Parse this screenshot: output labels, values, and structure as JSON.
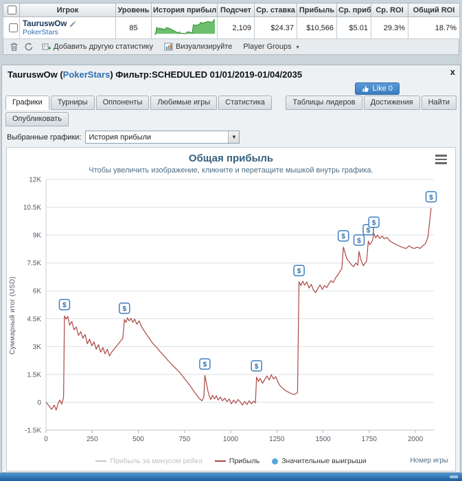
{
  "table": {
    "headers": [
      "Игрок",
      "Уровень",
      "История прибыли",
      "Подсчет",
      "Ср. ставка",
      "Прибыль",
      "Ср. приб",
      "Ср. ROI",
      "Общий ROI"
    ],
    "row": {
      "player": "TauruswOw",
      "site": "PokerStars",
      "level": "85",
      "count": "2,109",
      "avg_stake": "$24.37",
      "profit": "$10,566",
      "avg_profit": "$5.01",
      "avg_roi": "29.3%",
      "total_roi": "18.7%"
    },
    "sparkline": [
      0,
      -3,
      34,
      31,
      28,
      30,
      26,
      28,
      24,
      25,
      22,
      33,
      32,
      30,
      28,
      26,
      23,
      20,
      17,
      14,
      10,
      7,
      3,
      11,
      4,
      2,
      3,
      1,
      2,
      0,
      10,
      9,
      11,
      8,
      6,
      4,
      48,
      46,
      48,
      45,
      47,
      50,
      53,
      62,
      58,
      56,
      61,
      60,
      63,
      66,
      65,
      64,
      63,
      62,
      64,
      72,
      78
    ]
  },
  "toolbar": {
    "add_stat": "Добавить другую статистику",
    "visualize": "Визуализируйте",
    "player_groups": "Player Groups"
  },
  "panel": {
    "title_prefix": "TauruswOw (",
    "title_site": "PokerStars",
    "title_suffix": ") Фильтр:SCHEDULED 01/01/2019-01/04/2035",
    "like_label": "Like 0",
    "close_label": "x",
    "tabs_left": [
      "Графики",
      "Турниры",
      "Оппоненты",
      "Любимые игры",
      "Статистика"
    ],
    "tabs_right": [
      "Таблицы лидеров",
      "Достижения",
      "Найти"
    ],
    "tabs_row2": [
      "Опубликовать"
    ],
    "selector_label": "Выбранные графики:",
    "selector_value": "История прибыли"
  },
  "chart_data": {
    "type": "line",
    "title": "Общая прибыль",
    "subtitle": "Чтобы увеличить изображение, кликните и перетащите мышкой внутрь графика.",
    "xlabel": "Номер игры",
    "ylabel": "Суммарный итог (USD)",
    "xlim": [
      0,
      2100
    ],
    "ylim": [
      -1500,
      12000
    ],
    "xticks": [
      0,
      250,
      500,
      750,
      1000,
      1250,
      1500,
      1750,
      2000
    ],
    "yticks": [
      -1500,
      0,
      1500,
      3000,
      4500,
      6000,
      7500,
      9000,
      10500,
      12000
    ],
    "ytick_labels": [
      "-1.5K",
      "0",
      "1.5K",
      "3K",
      "4.5K",
      "6K",
      "7.5K",
      "9K",
      "10.5K",
      "12K"
    ],
    "grid": true,
    "line_color": "#AA4643",
    "marker_border": "#3f7fc1",
    "marker_text_color": "#2f6da4",
    "marker_label": "$",
    "legend_position": "bottom",
    "legend": [
      {
        "label": "Прибыль за минусом рейка",
        "type": "line",
        "color": "#c6c6c6",
        "disabled": true
      },
      {
        "label": "Прибыль",
        "type": "line",
        "color": "#AA4643",
        "disabled": false
      },
      {
        "label": "Значительные выигрыши",
        "type": "dot",
        "color": "#54a8e0",
        "disabled": false
      }
    ],
    "series": [
      {
        "name": "Прибыль",
        "points": [
          [
            0,
            0
          ],
          [
            15,
            -180
          ],
          [
            30,
            -380
          ],
          [
            45,
            -150
          ],
          [
            55,
            -420
          ],
          [
            65,
            -80
          ],
          [
            75,
            120
          ],
          [
            85,
            -100
          ],
          [
            95,
            250
          ],
          [
            100,
            4650
          ],
          [
            108,
            4480
          ],
          [
            118,
            4620
          ],
          [
            128,
            4150
          ],
          [
            140,
            4350
          ],
          [
            152,
            3900
          ],
          [
            164,
            4050
          ],
          [
            176,
            3600
          ],
          [
            188,
            3800
          ],
          [
            200,
            3450
          ],
          [
            212,
            3650
          ],
          [
            224,
            3150
          ],
          [
            236,
            3400
          ],
          [
            248,
            3050
          ],
          [
            260,
            3250
          ],
          [
            272,
            2850
          ],
          [
            284,
            3100
          ],
          [
            296,
            2700
          ],
          [
            308,
            2950
          ],
          [
            320,
            2600
          ],
          [
            332,
            2850
          ],
          [
            344,
            2500
          ],
          [
            356,
            2700
          ],
          [
            368,
            2850
          ],
          [
            380,
            3000
          ],
          [
            392,
            3150
          ],
          [
            404,
            3300
          ],
          [
            416,
            3450
          ],
          [
            425,
            4450
          ],
          [
            433,
            4300
          ],
          [
            441,
            4550
          ],
          [
            450,
            4380
          ],
          [
            460,
            4520
          ],
          [
            470,
            4300
          ],
          [
            480,
            4480
          ],
          [
            492,
            4200
          ],
          [
            504,
            4380
          ],
          [
            516,
            4100
          ],
          [
            528,
            3900
          ],
          [
            545,
            3650
          ],
          [
            562,
            3400
          ],
          [
            580,
            3150
          ],
          [
            600,
            2950
          ],
          [
            620,
            2700
          ],
          [
            640,
            2500
          ],
          [
            660,
            2250
          ],
          [
            680,
            2050
          ],
          [
            700,
            1850
          ],
          [
            720,
            1650
          ],
          [
            740,
            1400
          ],
          [
            760,
            1150
          ],
          [
            780,
            900
          ],
          [
            800,
            600
          ],
          [
            815,
            400
          ],
          [
            830,
            200
          ],
          [
            845,
            80
          ],
          [
            855,
            300
          ],
          [
            860,
            1450
          ],
          [
            868,
            1050
          ],
          [
            876,
            650
          ],
          [
            884,
            350
          ],
          [
            892,
            150
          ],
          [
            902,
            380
          ],
          [
            912,
            180
          ],
          [
            922,
            350
          ],
          [
            932,
            120
          ],
          [
            944,
            280
          ],
          [
            956,
            80
          ],
          [
            968,
            220
          ],
          [
            980,
            30
          ],
          [
            992,
            180
          ],
          [
            1004,
            -80
          ],
          [
            1016,
            120
          ],
          [
            1028,
            -50
          ],
          [
            1040,
            150
          ],
          [
            1052,
            20
          ],
          [
            1064,
            -150
          ],
          [
            1076,
            50
          ],
          [
            1088,
            -120
          ],
          [
            1100,
            80
          ],
          [
            1112,
            -80
          ],
          [
            1124,
            60
          ],
          [
            1134,
            -30
          ],
          [
            1140,
            1350
          ],
          [
            1150,
            1120
          ],
          [
            1160,
            1280
          ],
          [
            1172,
            1020
          ],
          [
            1184,
            1220
          ],
          [
            1196,
            1420
          ],
          [
            1208,
            1200
          ],
          [
            1220,
            1480
          ],
          [
            1232,
            1250
          ],
          [
            1244,
            1380
          ],
          [
            1256,
            1080
          ],
          [
            1268,
            880
          ],
          [
            1280,
            780
          ],
          [
            1295,
            640
          ],
          [
            1310,
            560
          ],
          [
            1325,
            480
          ],
          [
            1340,
            420
          ],
          [
            1352,
            460
          ],
          [
            1362,
            520
          ],
          [
            1370,
            6480
          ],
          [
            1380,
            6280
          ],
          [
            1390,
            6520
          ],
          [
            1400,
            6300
          ],
          [
            1412,
            6480
          ],
          [
            1424,
            6150
          ],
          [
            1436,
            6350
          ],
          [
            1448,
            6050
          ],
          [
            1460,
            5900
          ],
          [
            1472,
            6120
          ],
          [
            1484,
            6320
          ],
          [
            1496,
            6080
          ],
          [
            1508,
            6280
          ],
          [
            1520,
            6180
          ],
          [
            1532,
            6380
          ],
          [
            1544,
            6550
          ],
          [
            1556,
            6450
          ],
          [
            1568,
            6700
          ],
          [
            1580,
            6850
          ],
          [
            1592,
            7050
          ],
          [
            1602,
            7200
          ],
          [
            1610,
            8350
          ],
          [
            1620,
            8000
          ],
          [
            1630,
            7700
          ],
          [
            1642,
            7550
          ],
          [
            1654,
            7400
          ],
          [
            1666,
            7300
          ],
          [
            1678,
            7500
          ],
          [
            1688,
            7380
          ],
          [
            1695,
            8120
          ],
          [
            1703,
            7750
          ],
          [
            1711,
            7500
          ],
          [
            1719,
            7350
          ],
          [
            1727,
            7480
          ],
          [
            1736,
            7600
          ],
          [
            1745,
            8680
          ],
          [
            1753,
            8480
          ],
          [
            1761,
            8600
          ],
          [
            1769,
            8750
          ],
          [
            1775,
            9080
          ],
          [
            1785,
            8850
          ],
          [
            1795,
            9000
          ],
          [
            1808,
            8820
          ],
          [
            1820,
            8950
          ],
          [
            1832,
            8800
          ],
          [
            1846,
            8880
          ],
          [
            1860,
            8700
          ],
          [
            1875,
            8600
          ],
          [
            1890,
            8520
          ],
          [
            1905,
            8450
          ],
          [
            1920,
            8380
          ],
          [
            1935,
            8320
          ],
          [
            1950,
            8280
          ],
          [
            1965,
            8420
          ],
          [
            1980,
            8320
          ],
          [
            1995,
            8280
          ],
          [
            2010,
            8350
          ],
          [
            2025,
            8280
          ],
          [
            2040,
            8420
          ],
          [
            2055,
            8550
          ],
          [
            2068,
            8900
          ],
          [
            2078,
            9800
          ],
          [
            2085,
            10450
          ]
        ]
      }
    ],
    "significant_wins": [
      [
        100,
        4650
      ],
      [
        425,
        4450
      ],
      [
        860,
        1450
      ],
      [
        1140,
        1350
      ],
      [
        1370,
        6480
      ],
      [
        1610,
        8350
      ],
      [
        1695,
        8120
      ],
      [
        1745,
        8680
      ],
      [
        1775,
        9080
      ],
      [
        2085,
        10450
      ]
    ]
  }
}
